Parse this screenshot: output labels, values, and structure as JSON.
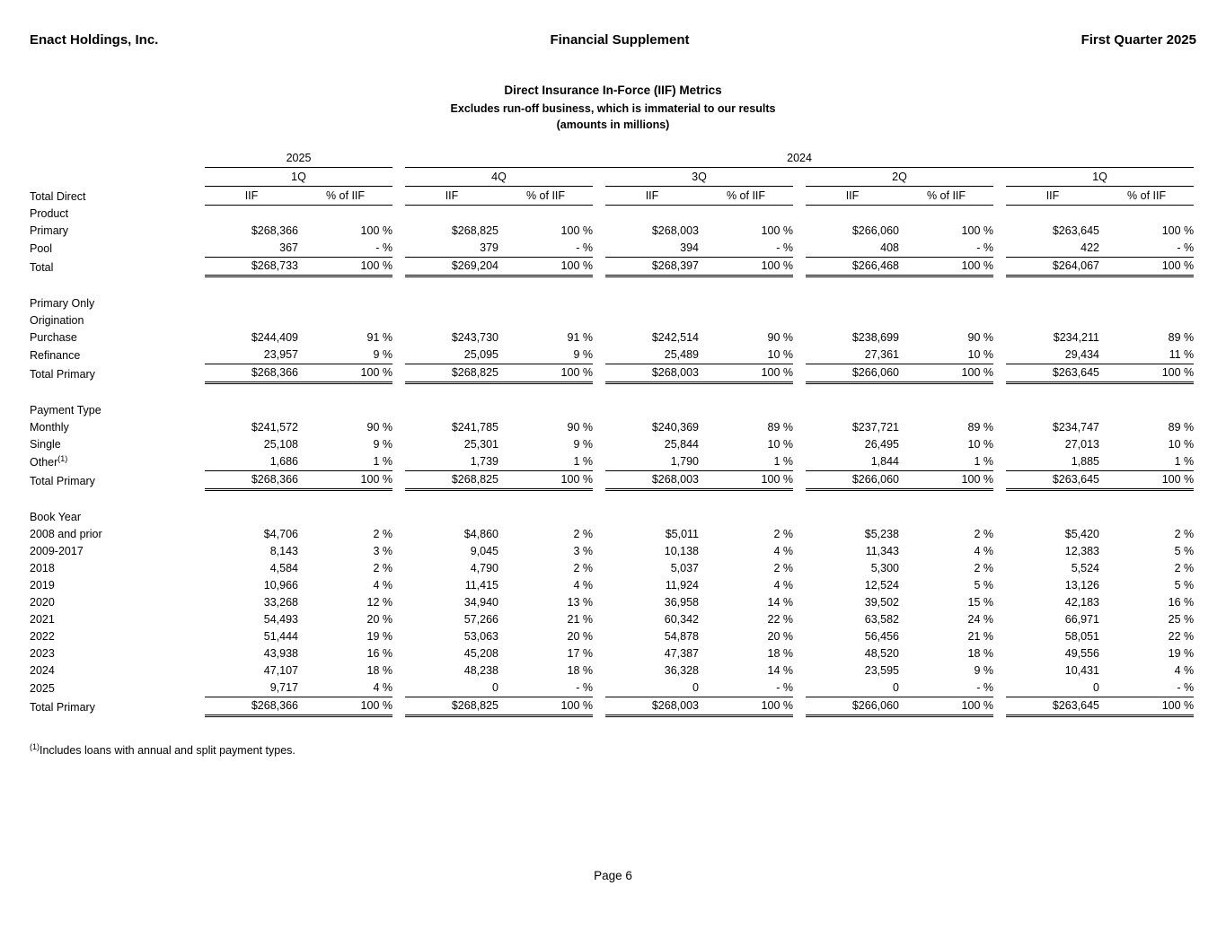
{
  "header": {
    "left": "Enact Holdings, Inc.",
    "center": "Financial Supplement",
    "right": "First Quarter 2025"
  },
  "title": {
    "line1": "Direct Insurance In-Force (IIF) Metrics",
    "line2": "Excludes run-off business, which is immaterial to our results",
    "line3": "(amounts in millions)"
  },
  "table": {
    "years": [
      {
        "label": "2025",
        "span": 1
      },
      {
        "label": "2024",
        "span": 4
      }
    ],
    "quarters": [
      "1Q",
      "4Q",
      "3Q",
      "2Q",
      "1Q"
    ],
    "corner_label": "Total Direct",
    "iif_header": "IIF",
    "pct_header": "% of IIF",
    "sections": [
      {
        "headings": [
          {
            "label": "Product",
            "indent": 1
          }
        ],
        "rows": [
          {
            "label": "Primary",
            "indent": 2,
            "cells": [
              "$268,366",
              "100 %",
              "$268,825",
              "100 %",
              "$268,003",
              "100 %",
              "$266,060",
              "100 %",
              "$263,645",
              "100 %"
            ]
          },
          {
            "label": "Pool",
            "indent": 2,
            "cells": [
              "367",
              "- %",
              "379",
              "- %",
              "394",
              "- %",
              "408",
              "- %",
              "422",
              "- %"
            ]
          },
          {
            "label": "Total",
            "indent": 1,
            "total": true,
            "cells": [
              "$268,733",
              "100 %",
              "$269,204",
              "100 %",
              "$268,397",
              "100 %",
              "$266,468",
              "100 %",
              "$264,067",
              "100 %"
            ]
          }
        ]
      },
      {
        "headings": [
          {
            "label": "Primary Only",
            "indent": 0
          },
          {
            "label": "Origination",
            "indent": 1
          }
        ],
        "rows": [
          {
            "label": "Purchase",
            "indent": 2,
            "cells": [
              "$244,409",
              "91 %",
              "$243,730",
              "91 %",
              "$242,514",
              "90 %",
              "$238,699",
              "90 %",
              "$234,211",
              "89 %"
            ]
          },
          {
            "label": "Refinance",
            "indent": 2,
            "cells": [
              "23,957",
              "9 %",
              "25,095",
              "9 %",
              "25,489",
              "10 %",
              "27,361",
              "10 %",
              "29,434",
              "11 %"
            ]
          },
          {
            "label": "Total Primary",
            "indent": 1,
            "total": true,
            "cells": [
              "$268,366",
              "100 %",
              "$268,825",
              "100 %",
              "$268,003",
              "100 %",
              "$266,060",
              "100 %",
              "$263,645",
              "100 %"
            ]
          }
        ]
      },
      {
        "headings": [
          {
            "label": "Payment Type",
            "indent": 1
          }
        ],
        "rows": [
          {
            "label": "Monthly",
            "indent": 2,
            "cells": [
              "$241,572",
              "90 %",
              "$241,785",
              "90 %",
              "$240,369",
              "89 %",
              "$237,721",
              "89 %",
              "$234,747",
              "89 %"
            ]
          },
          {
            "label": "Single",
            "indent": 2,
            "cells": [
              "25,108",
              "9 %",
              "25,301",
              "9 %",
              "25,844",
              "10 %",
              "26,495",
              "10 %",
              "27,013",
              "10 %"
            ]
          },
          {
            "label": "Other",
            "sup": "(1)",
            "indent": 2,
            "cells": [
              "1,686",
              "1 %",
              "1,739",
              "1 %",
              "1,790",
              "1 %",
              "1,844",
              "1 %",
              "1,885",
              "1 %"
            ]
          },
          {
            "label": "Total Primary",
            "indent": 1,
            "total": true,
            "cells": [
              "$268,366",
              "100 %",
              "$268,825",
              "100 %",
              "$268,003",
              "100 %",
              "$266,060",
              "100 %",
              "$263,645",
              "100 %"
            ]
          }
        ]
      },
      {
        "headings": [
          {
            "label": "Book Year",
            "indent": 1
          }
        ],
        "rows": [
          {
            "label": "2008 and prior",
            "indent": 2,
            "cells": [
              "$4,706",
              "2 %",
              "$4,860",
              "2 %",
              "$5,011",
              "2 %",
              "$5,238",
              "2 %",
              "$5,420",
              "2 %"
            ]
          },
          {
            "label": "2009-2017",
            "indent": 2,
            "cells": [
              "8,143",
              "3 %",
              "9,045",
              "3 %",
              "10,138",
              "4 %",
              "11,343",
              "4 %",
              "12,383",
              "5 %"
            ]
          },
          {
            "label": "2018",
            "indent": 2,
            "cells": [
              "4,584",
              "2 %",
              "4,790",
              "2 %",
              "5,037",
              "2 %",
              "5,300",
              "2 %",
              "5,524",
              "2 %"
            ]
          },
          {
            "label": "2019",
            "indent": 2,
            "cells": [
              "10,966",
              "4 %",
              "11,415",
              "4 %",
              "11,924",
              "4 %",
              "12,524",
              "5 %",
              "13,126",
              "5 %"
            ]
          },
          {
            "label": "2020",
            "indent": 2,
            "cells": [
              "33,268",
              "12 %",
              "34,940",
              "13 %",
              "36,958",
              "14 %",
              "39,502",
              "15 %",
              "42,183",
              "16 %"
            ]
          },
          {
            "label": "2021",
            "indent": 2,
            "cells": [
              "54,493",
              "20 %",
              "57,266",
              "21 %",
              "60,342",
              "22 %",
              "63,582",
              "24 %",
              "66,971",
              "25 %"
            ]
          },
          {
            "label": "2022",
            "indent": 2,
            "cells": [
              "51,444",
              "19 %",
              "53,063",
              "20 %",
              "54,878",
              "20 %",
              "56,456",
              "21 %",
              "58,051",
              "22 %"
            ]
          },
          {
            "label": "2023",
            "indent": 2,
            "cells": [
              "43,938",
              "16 %",
              "45,208",
              "17 %",
              "47,387",
              "18 %",
              "48,520",
              "18 %",
              "49,556",
              "19 %"
            ]
          },
          {
            "label": "2024",
            "indent": 2,
            "cells": [
              "47,107",
              "18 %",
              "48,238",
              "18 %",
              "36,328",
              "14 %",
              "23,595",
              "9 %",
              "10,431",
              "4 %"
            ]
          },
          {
            "label": "2025",
            "indent": 2,
            "cells": [
              "9,717",
              "4 %",
              "0",
              "- %",
              "0",
              "- %",
              "0",
              "- %",
              "0",
              "- %"
            ]
          },
          {
            "label": "Total Primary",
            "indent": 1,
            "total": true,
            "cells": [
              "$268,366",
              "100 %",
              "$268,825",
              "100 %",
              "$268,003",
              "100 %",
              "$266,060",
              "100 %",
              "$263,645",
              "100 %"
            ]
          }
        ]
      }
    ]
  },
  "footnote": {
    "sup": "(1)",
    "text": "Includes loans with annual and split payment types."
  },
  "footer": {
    "page_label": "Page 6"
  }
}
